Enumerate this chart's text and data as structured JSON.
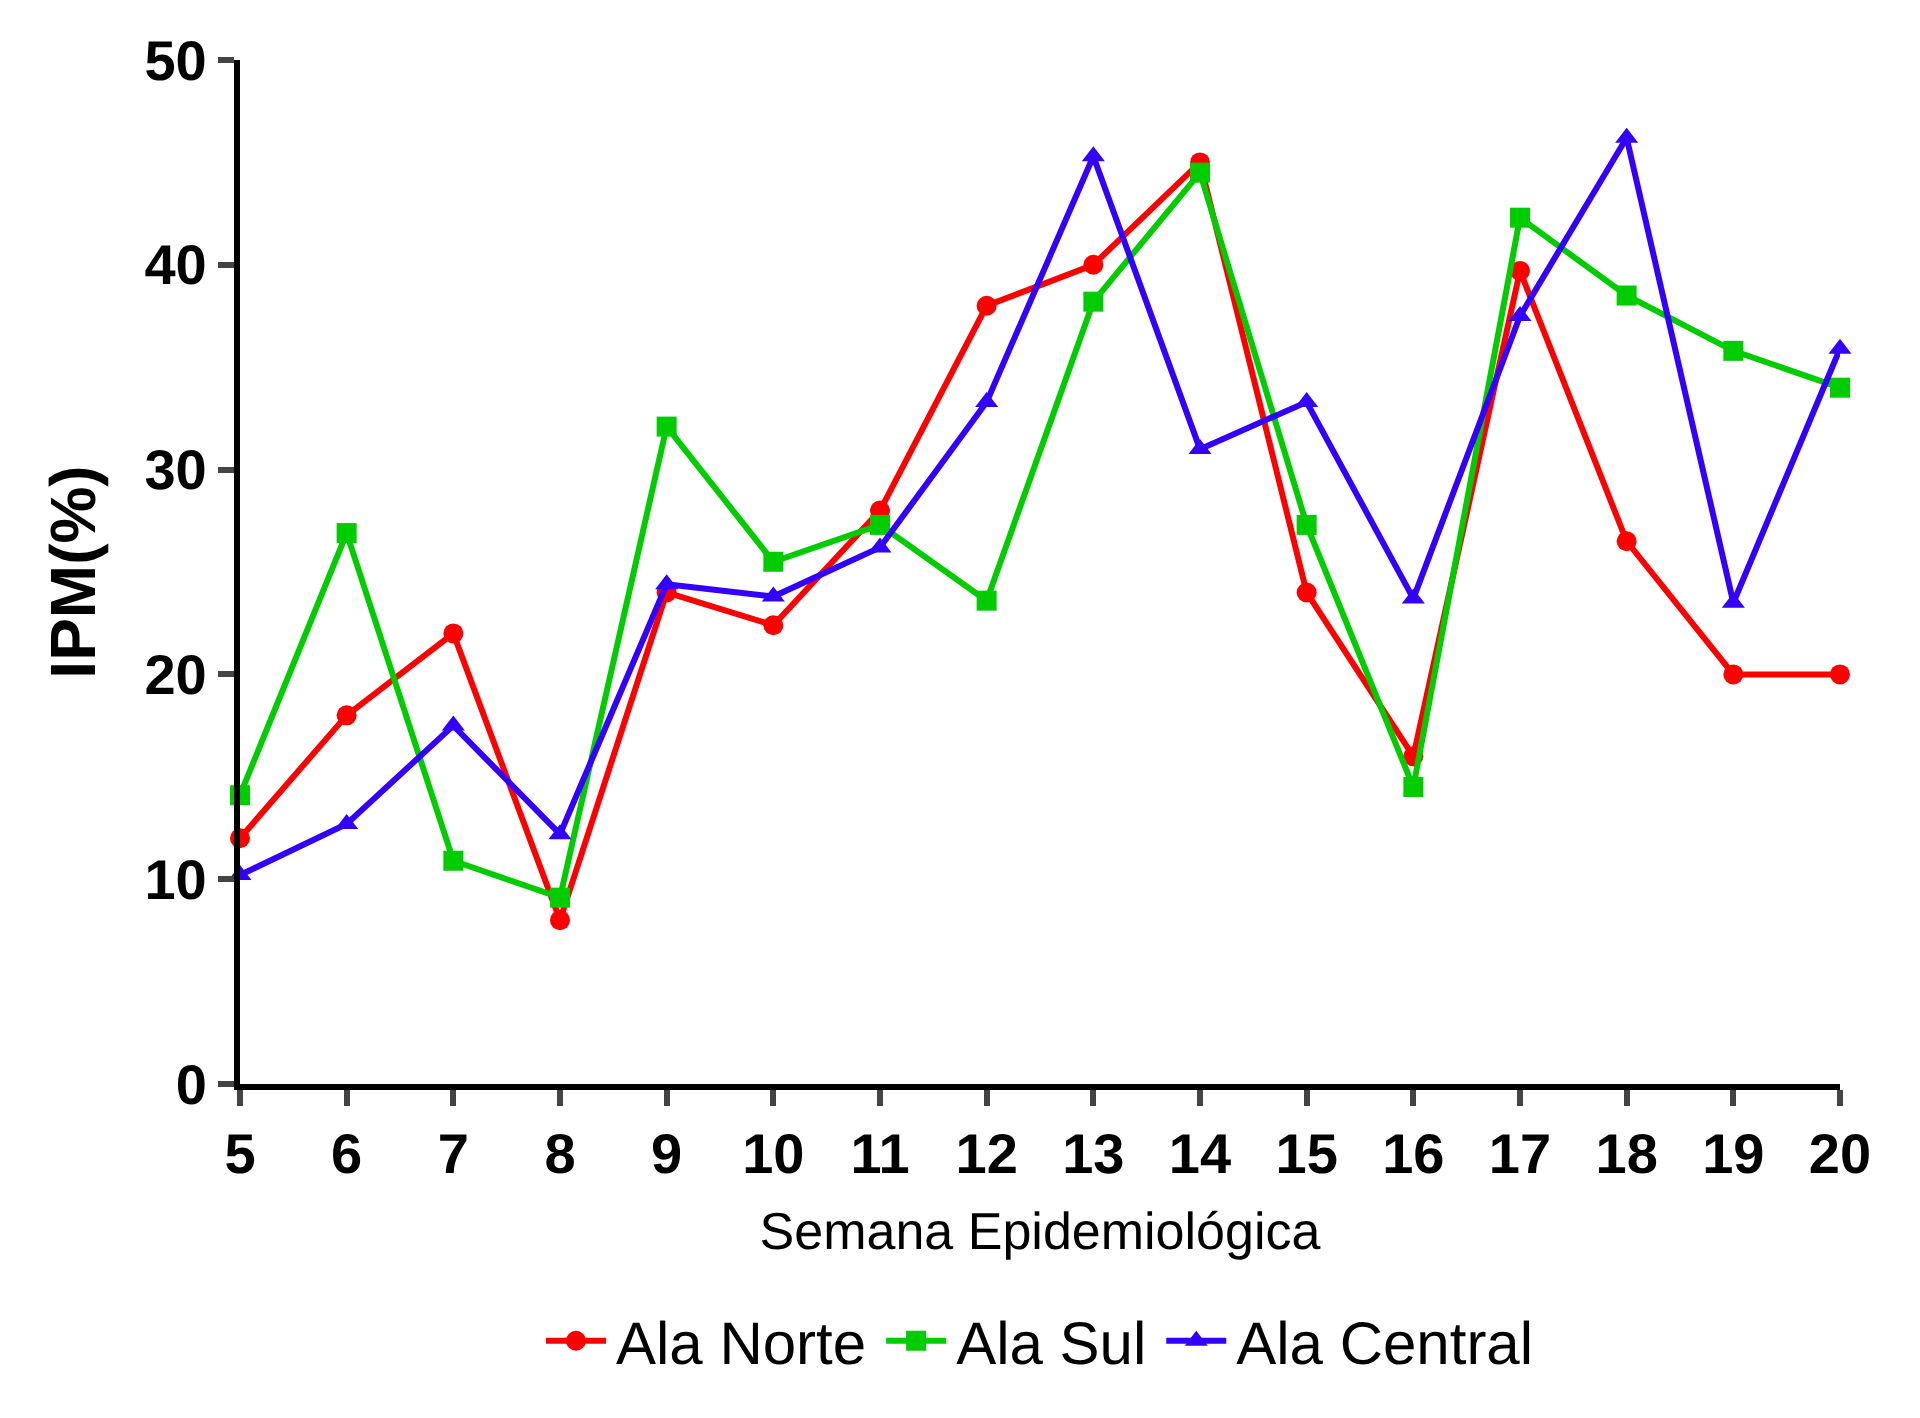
{
  "chart_data": {
    "type": "line",
    "xlabel": "Semana Epidemiológica",
    "ylabel": "IPM(%)",
    "x": [
      5,
      6,
      7,
      8,
      9,
      10,
      11,
      12,
      13,
      14,
      15,
      16,
      17,
      18,
      19,
      20
    ],
    "series": [
      {
        "name": "Ala Norte",
        "color": "#ff0000",
        "marker": "circle",
        "values": [
          12.0,
          18.0,
          22.0,
          8.0,
          24.0,
          22.4,
          28.0,
          38.0,
          40.0,
          45.0,
          24.0,
          16.0,
          39.7,
          26.5,
          20.0,
          20.0
        ]
      },
      {
        "name": "Ala Sul",
        "color": "#00cc00",
        "marker": "square",
        "values": [
          14.1,
          26.9,
          10.9,
          9.1,
          32.1,
          25.5,
          27.3,
          23.6,
          38.2,
          44.5,
          27.3,
          14.5,
          42.3,
          38.5,
          35.8,
          34.0
        ]
      },
      {
        "name": "Ala Central",
        "color": "#3300ff",
        "marker": "triangle",
        "values": [
          10.2,
          12.7,
          17.5,
          12.2,
          24.4,
          23.8,
          26.2,
          33.3,
          45.3,
          31.0,
          33.3,
          23.7,
          37.5,
          46.2,
          23.5,
          35.9
        ]
      }
    ],
    "xlim": [
      5,
      20
    ],
    "xticks": [
      5,
      6,
      7,
      8,
      9,
      10,
      11,
      12,
      13,
      14,
      15,
      16,
      17,
      18,
      19,
      20
    ],
    "ylim": [
      0,
      50
    ],
    "yticks": [
      0,
      10,
      20,
      30,
      40,
      50
    ],
    "legend": "bottom",
    "line_style": "solid"
  }
}
